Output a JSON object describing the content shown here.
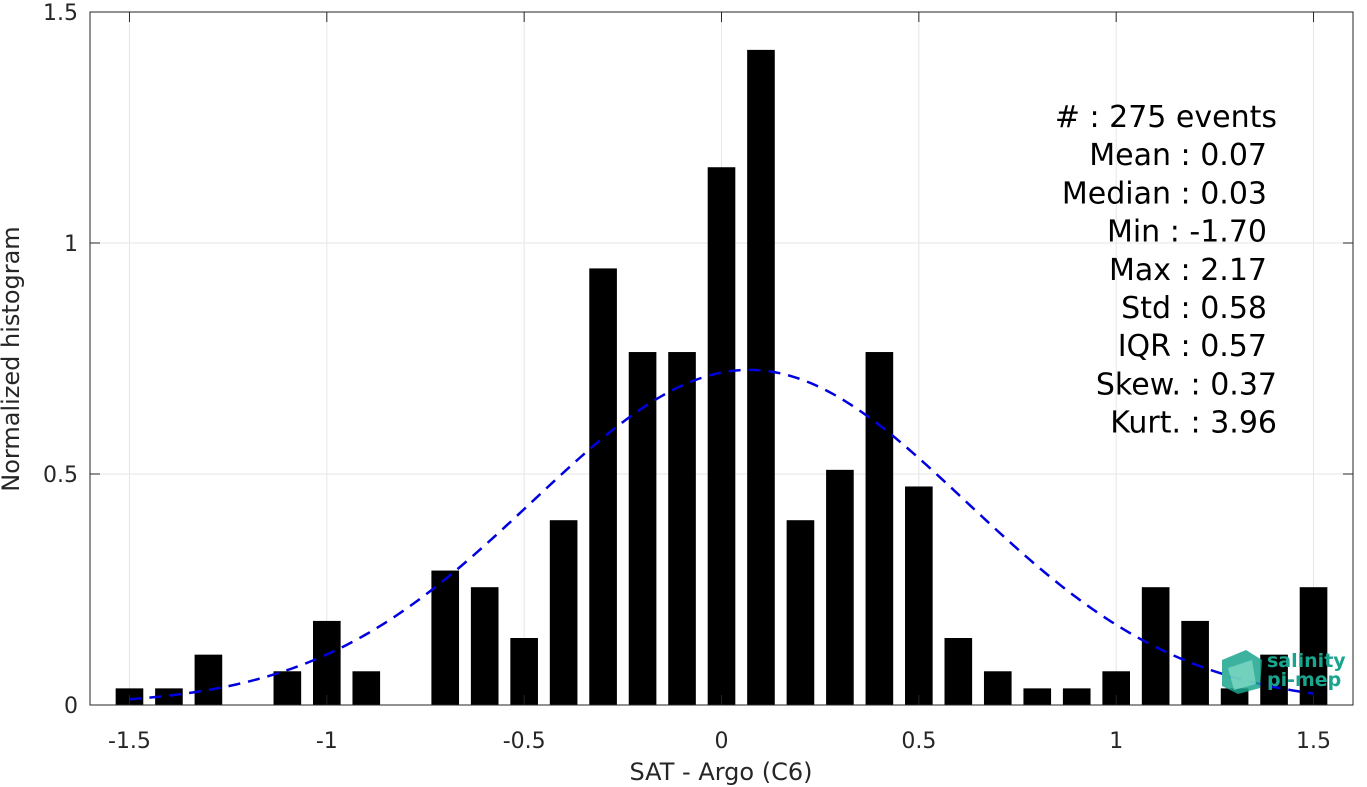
{
  "chart_data": {
    "type": "bar",
    "xlabel": "SAT - Argo (C6)",
    "ylabel": "Normalized histogram",
    "xlim": [
      -1.6,
      1.6
    ],
    "ylim": [
      0,
      1.5
    ],
    "grid": true,
    "x_ticks": [
      -1.5,
      -1,
      -0.5,
      0,
      0.5,
      1,
      1.5
    ],
    "x_tick_labels": [
      "-1.5",
      "-1",
      "-0.5",
      "0",
      "0.5",
      "1",
      "1.5"
    ],
    "y_ticks": [
      0,
      0.5,
      1,
      1.5
    ],
    "y_tick_labels": [
      "0",
      "0.5",
      "1",
      "1.5"
    ],
    "bar_color": "#000000",
    "bar_width": 0.07,
    "bins": [
      -1.5,
      -1.4,
      -1.3,
      -1.2,
      -1.1,
      -1.0,
      -0.9,
      -0.8,
      -0.7,
      -0.6,
      -0.5,
      -0.4,
      -0.3,
      -0.2,
      -0.1,
      0.0,
      0.1,
      0.2,
      0.3,
      0.4,
      0.5,
      0.6,
      0.7,
      0.8,
      0.9,
      1.0,
      1.1,
      1.2,
      1.3,
      1.4,
      1.5
    ],
    "values": [
      0.036,
      0.036,
      0.109,
      0,
      0.073,
      0.182,
      0.073,
      0,
      0.291,
      0.255,
      0.145,
      0.4,
      0.945,
      0.764,
      0.764,
      1.164,
      1.418,
      0.4,
      0.509,
      0.764,
      0.473,
      0.145,
      0.073,
      0.036,
      0.036,
      0.073,
      0.255,
      0.182,
      0.036,
      0.109,
      0.255
    ],
    "fit": {
      "type": "normal",
      "mean": 0.07,
      "std": 0.55,
      "color": "#0000e0",
      "style": "dashed",
      "x_range": [
        -1.5,
        1.5
      ]
    },
    "stats": [
      "#  : 275 events",
      "Mean : 0.07",
      "Median : 0.03",
      "Min : -1.70",
      "Max : 2.17",
      "Std : 0.58",
      "IQR : 0.57",
      "Skew. : 0.37",
      "Kurt. : 3.96"
    ]
  },
  "logo": {
    "line1": "salinity",
    "line2": "pi-mep",
    "color": "#1aa48e"
  }
}
